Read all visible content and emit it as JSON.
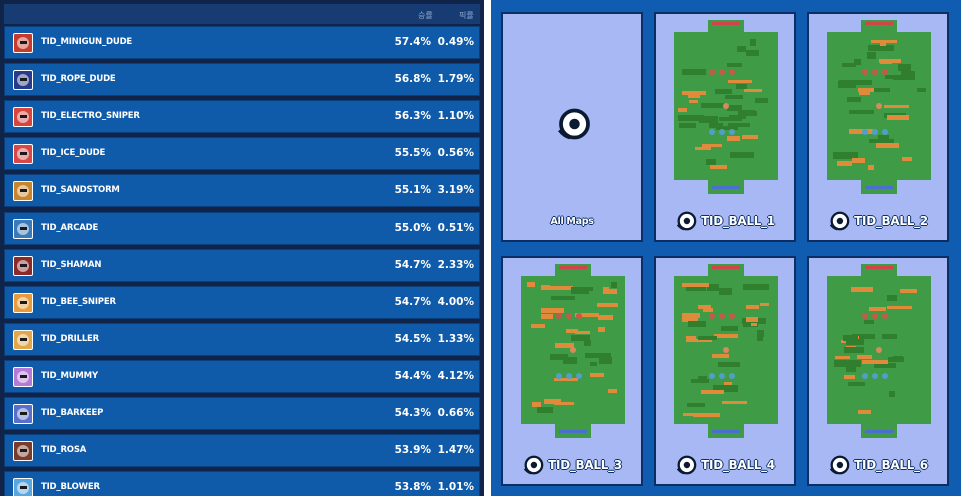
{
  "table": {
    "header": {
      "win_rate": "승률",
      "use_rate": "픽률"
    },
    "rows": [
      {
        "name": "TID_MINIGUN_DUDE",
        "win": "57.4%",
        "use": "0.49%",
        "avatar_color": "#c63b2b"
      },
      {
        "name": "TID_ROPE_DUDE",
        "win": "56.8%",
        "use": "1.79%",
        "avatar_color": "#283a8a"
      },
      {
        "name": "TID_ELECTRO_SNIPER",
        "win": "56.3%",
        "use": "1.10%",
        "avatar_color": "#d8443e"
      },
      {
        "name": "TID_ICE_DUDE",
        "win": "55.5%",
        "use": "0.56%",
        "avatar_color": "#d94848"
      },
      {
        "name": "TID_SANDSTORM",
        "win": "55.1%",
        "use": "3.19%",
        "avatar_color": "#c9852a"
      },
      {
        "name": "TID_ARCADE",
        "win": "55.0%",
        "use": "0.51%",
        "avatar_color": "#3a7ab8"
      },
      {
        "name": "TID_SHAMAN",
        "win": "54.7%",
        "use": "2.33%",
        "avatar_color": "#8c2a2a"
      },
      {
        "name": "TID_BEE_SNIPER",
        "win": "54.7%",
        "use": "4.00%",
        "avatar_color": "#e79b3a"
      },
      {
        "name": "TID_DRILLER",
        "win": "54.5%",
        "use": "1.33%",
        "avatar_color": "#e2a74a"
      },
      {
        "name": "TID_MUMMY",
        "win": "54.4%",
        "use": "4.12%",
        "avatar_color": "#b67ad6"
      },
      {
        "name": "TID_BARKEEP",
        "win": "54.3%",
        "use": "0.66%",
        "avatar_color": "#5a6fc9"
      },
      {
        "name": "TID_ROSA",
        "win": "53.9%",
        "use": "1.47%",
        "avatar_color": "#7a3b2a"
      },
      {
        "name": "TID_BLOWER",
        "win": "53.8%",
        "use": "1.01%",
        "avatar_color": "#5aa7e0"
      }
    ]
  },
  "maps": {
    "cards": [
      {
        "label": "All Maps",
        "icon": "soccer-ball-icon"
      },
      {
        "label": "TID_BALL_1",
        "icon": "soccer-ball-icon"
      },
      {
        "label": "TID_BALL_2",
        "icon": "soccer-ball-icon"
      },
      {
        "label": "TID_BALL_3",
        "icon": "soccer-ball-icon"
      },
      {
        "label": "TID_BALL_4",
        "icon": "soccer-ball-icon"
      },
      {
        "label": "TID_BALL_6",
        "icon": "soccer-ball-icon"
      }
    ]
  },
  "colors": {
    "panel_bg": "#0f5cb0",
    "card_bg": "#a7b8f5",
    "row_bg": "#0f5aa9",
    "field_green": "#3f9b45",
    "wall_orange": "#e08a3c",
    "bush_green": "#2f7f2f",
    "goal_red": "#d0454b",
    "goal_blue": "#4b6fd0"
  }
}
